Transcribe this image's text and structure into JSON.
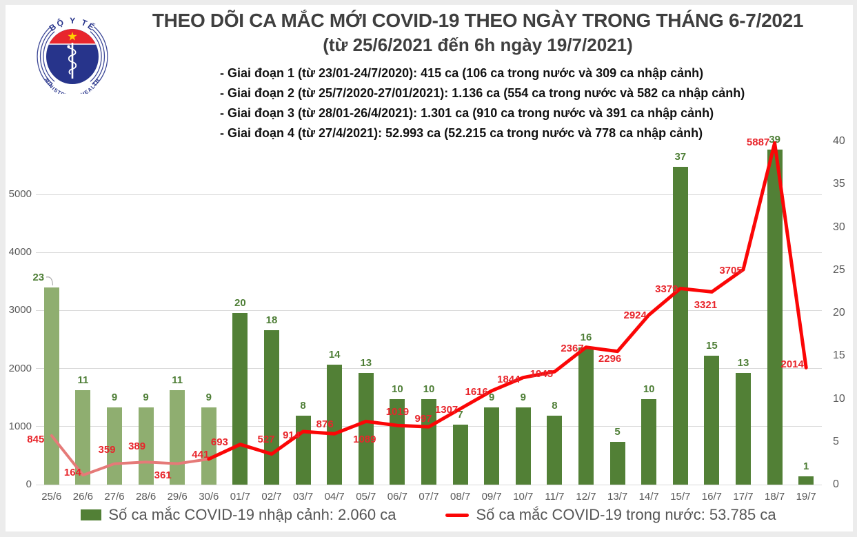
{
  "logo": {
    "top_text": "BỘ Y TẾ",
    "bottom_text": "MINISTRY OF HEALTH"
  },
  "title": {
    "line1": "THEO DÕI CA MẮC MỚI COVID-19 THEO NGÀY TRONG THÁNG 6-7/2021",
    "line2": "(từ 25/6/2021 đến 6h ngày 19/7/2021)"
  },
  "notes": [
    "- Giai đoạn 1 (từ 23/01-24/7/2020): 415 ca (106 ca trong nước và 309 ca nhập cảnh)",
    "- Giai đoạn 2 (từ 25/7/2020-27/01/2021): 1.136 ca (554 ca trong nước và 582 ca nhập cảnh)",
    "- Giai đoạn 3 (từ 28/01-26/4/2021): 1.301 ca (910 ca trong nước và 391 ca nhập cảnh)",
    "- Giai đoạn 4 (từ 27/4/2021): 52.993 ca (52.215 ca trong nước và 778 ca nhập cảnh)"
  ],
  "chart_data": {
    "type": "bar+line combo",
    "categories": [
      "25/6",
      "26/6",
      "27/6",
      "28/6",
      "29/6",
      "30/6",
      "01/7",
      "02/7",
      "03/7",
      "04/7",
      "05/7",
      "06/7",
      "07/7",
      "08/7",
      "09/7",
      "10/7",
      "11/7",
      "12/7",
      "13/7",
      "14/7",
      "15/7",
      "16/7",
      "17/7",
      "18/7",
      "19/7"
    ],
    "series": [
      {
        "name": "Số ca mắc COVID-19 nhập cảnh",
        "type": "bar",
        "axis": "right",
        "values": [
          23,
          11,
          9,
          9,
          11,
          9,
          20,
          18,
          8,
          14,
          13,
          10,
          10,
          7,
          9,
          9,
          8,
          16,
          5,
          10,
          37,
          15,
          13,
          39,
          1
        ]
      },
      {
        "name": "Số ca mắc COVID-19 trong nước",
        "type": "line",
        "axis": "left",
        "values": [
          845,
          164,
          359,
          389,
          361,
          441,
          693,
          527,
          914,
          876,
          1089,
          1019,
          997,
          1307,
          1616,
          1844,
          1945,
          2367,
          2296,
          2924,
          3379,
          3321,
          3705,
          5887,
          2014
        ]
      }
    ],
    "left_axis": {
      "ticks": [
        "0",
        "1000",
        "2000",
        "3000",
        "4000",
        "5000"
      ],
      "range": [
        0,
        5915
      ]
    },
    "right_axis": {
      "ticks": [
        "0",
        "5",
        "10",
        "15",
        "20",
        "25",
        "30",
        "35",
        "40"
      ],
      "range": [
        0,
        40
      ]
    },
    "grid": "horizontal gridlines at left-axis ticks",
    "june_split_index": 6,
    "legend_position": "bottom",
    "legend": [
      {
        "series": "bar",
        "label": "Số ca mắc COVID-19 nhập cảnh: 2.060 ca"
      },
      {
        "series": "line",
        "label": "Số ca mắc COVID-19 trong nước: 53.785 ca"
      }
    ]
  },
  "colors": {
    "bar_june": "#8fae70",
    "bar_july": "#528036",
    "line_june": "#e57a78",
    "line_july": "#fb0606",
    "bar_label": "#4e7e36",
    "line_label": "#e8252b",
    "axis_text": "#595959",
    "grid": "#d9d9d9",
    "title_text": "#3f3f3f",
    "notes_text": "#111111",
    "legend_text": "#565656",
    "logo_navy": "#27348b",
    "logo_red": "#e8262d",
    "logo_star": "#ffd200"
  }
}
